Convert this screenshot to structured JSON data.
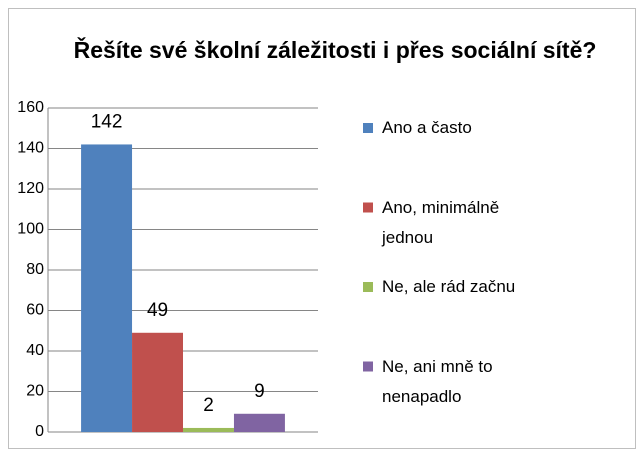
{
  "chart_data": {
    "type": "bar",
    "title": "Řešíte své školní záležitosti i přes sociální sítě?",
    "series": [
      {
        "name": "Ano a často",
        "color": "#4f81bd",
        "values": [
          142
        ]
      },
      {
        "name": "Ano, minimálně jednou",
        "color": "#c0504d",
        "values": [
          49
        ]
      },
      {
        "name": "Ne, ale rád začnu",
        "color": "#9bbb59",
        "values": [
          2
        ]
      },
      {
        "name": "Ne, ani mně to nenapadlo",
        "color": "#8064a2",
        "values": [
          9
        ]
      }
    ],
    "ylim": [
      0,
      160
    ],
    "yticks": [
      0,
      20,
      40,
      60,
      80,
      100,
      120,
      140,
      160
    ],
    "grid": true,
    "legend": "right"
  }
}
